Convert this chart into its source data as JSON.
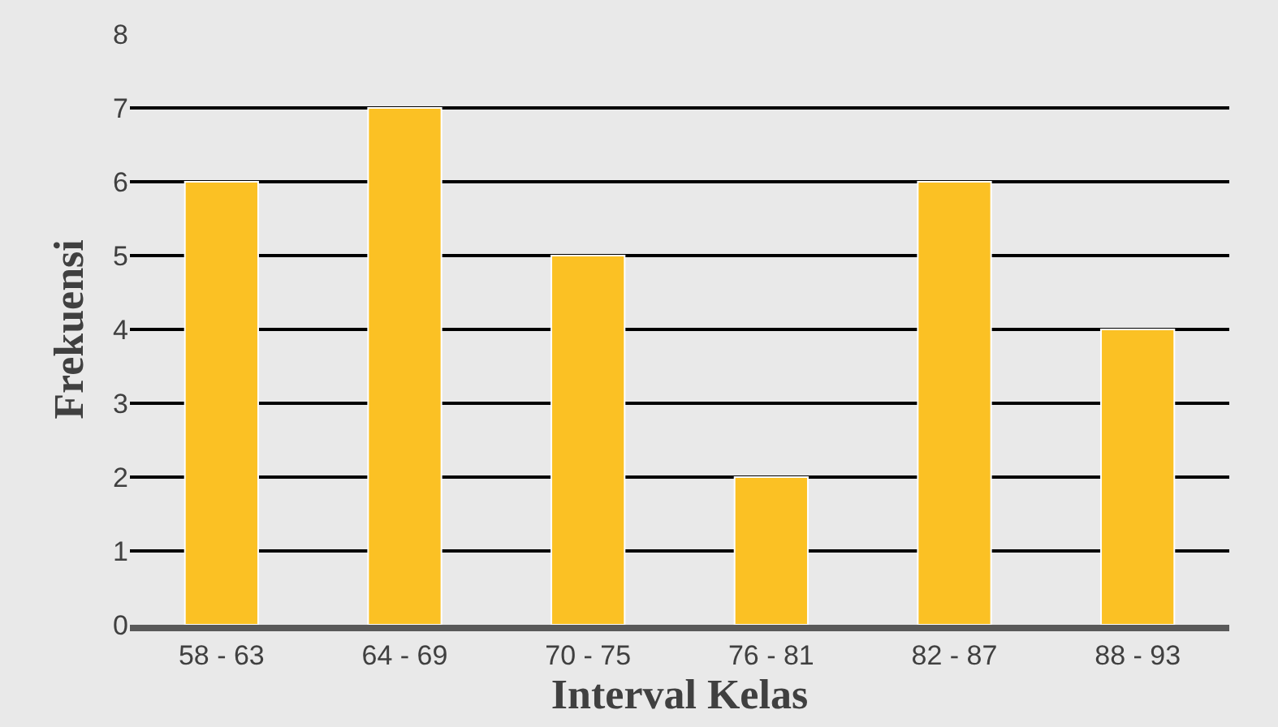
{
  "chart_data": {
    "type": "bar",
    "xlabel": "Interval Kelas",
    "ylabel": "Frekuensi",
    "categories": [
      "58 - 63",
      "64 - 69",
      "70 - 75",
      "76 - 81",
      "82 - 87",
      "88 - 93"
    ],
    "values": [
      6,
      7,
      5,
      2,
      6,
      4
    ],
    "color": "#fbc124",
    "ylim": [
      0,
      8
    ],
    "yticks": [
      0,
      1,
      2,
      3,
      4,
      5,
      6,
      7,
      8
    ],
    "grid": "y"
  }
}
